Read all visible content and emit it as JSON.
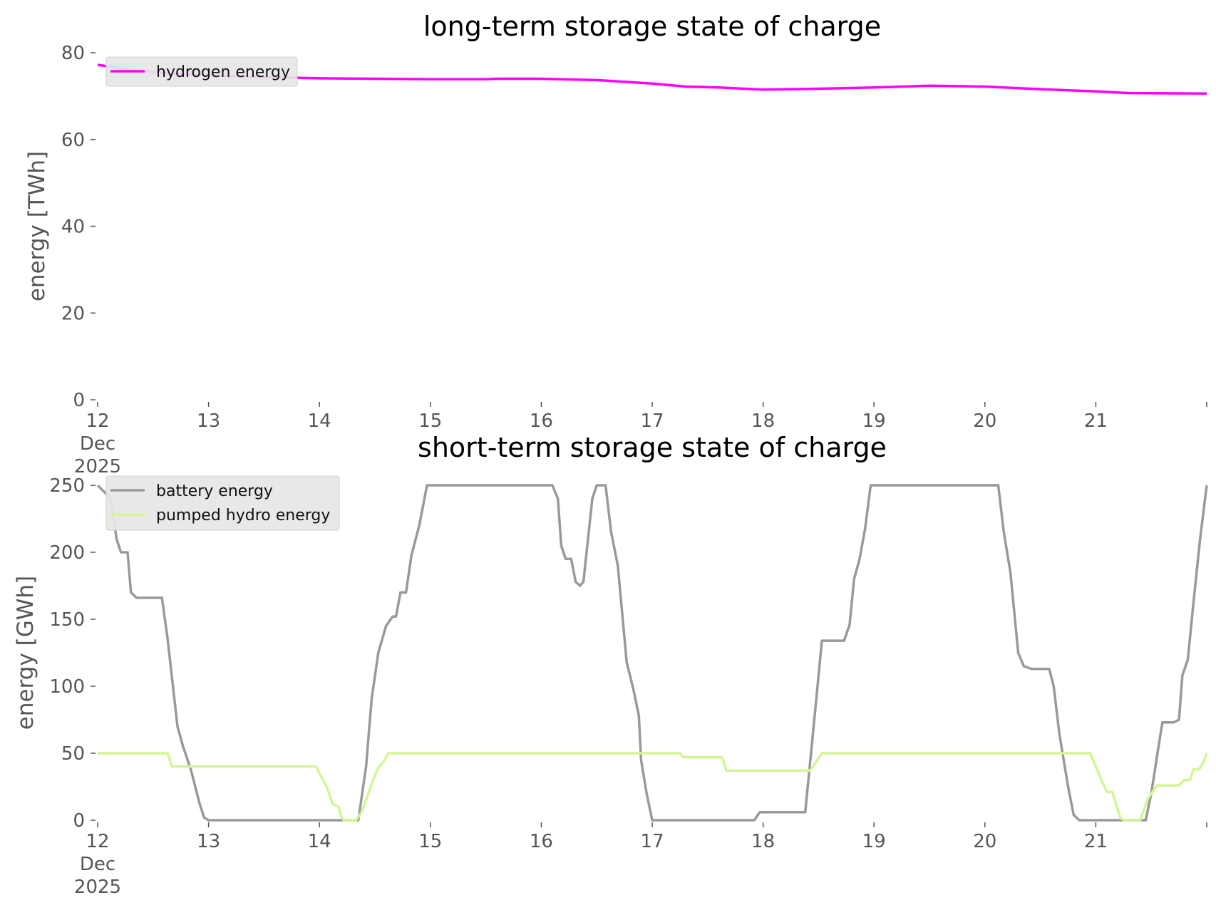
{
  "chart_data": [
    {
      "type": "line",
      "title": "long-term storage state of charge",
      "xlabel": "",
      "ylabel": "energy [TWh]",
      "ylim": [
        0,
        80
      ],
      "yticks": [
        "0",
        "20",
        "40",
        "60",
        "80"
      ],
      "xlim": [
        12,
        22
      ],
      "xticks": [
        {
          "x": 12,
          "label": [
            "12",
            "Dec",
            "2025"
          ]
        },
        {
          "x": 13,
          "label": [
            "13"
          ]
        },
        {
          "x": 14,
          "label": [
            "14"
          ]
        },
        {
          "x": 15,
          "label": [
            "15"
          ]
        },
        {
          "x": 16,
          "label": [
            "16"
          ]
        },
        {
          "x": 17,
          "label": [
            "17"
          ]
        },
        {
          "x": 18,
          "label": [
            "18"
          ]
        },
        {
          "x": 19,
          "label": [
            "19"
          ]
        },
        {
          "x": 20,
          "label": [
            "20"
          ]
        },
        {
          "x": 21,
          "label": [
            "21"
          ]
        }
      ],
      "grid": false,
      "legend_position": "top-left",
      "series": [
        {
          "name": "hydrogen energy",
          "color": "#ff00ff",
          "points": [
            [
              12.0,
              77.2
            ],
            [
              12.3,
              76.0
            ],
            [
              12.6,
              75.3
            ],
            [
              13.0,
              74.8
            ],
            [
              13.5,
              74.4
            ],
            [
              14.0,
              74.1
            ],
            [
              14.5,
              74.0
            ],
            [
              15.0,
              73.9
            ],
            [
              15.5,
              73.9
            ],
            [
              15.6,
              74.0
            ],
            [
              16.0,
              74.0
            ],
            [
              16.5,
              73.7
            ],
            [
              17.0,
              72.9
            ],
            [
              17.3,
              72.2
            ],
            [
              17.6,
              72.0
            ],
            [
              18.0,
              71.5
            ],
            [
              18.5,
              71.7
            ],
            [
              19.0,
              72.0
            ],
            [
              19.5,
              72.4
            ],
            [
              20.0,
              72.2
            ],
            [
              20.5,
              71.6
            ],
            [
              21.0,
              71.1
            ],
            [
              21.3,
              70.7
            ],
            [
              22.0,
              70.6
            ]
          ]
        }
      ]
    },
    {
      "type": "line",
      "title": "short-term storage state of charge",
      "xlabel": "",
      "ylabel": "energy [GWh]",
      "ylim": [
        0,
        250
      ],
      "yticks": [
        "0",
        "50",
        "100",
        "150",
        "200",
        "250"
      ],
      "xlim": [
        12,
        22
      ],
      "xticks": [
        {
          "x": 12,
          "label": [
            "12",
            "Dec",
            "2025"
          ]
        },
        {
          "x": 13,
          "label": [
            "13"
          ]
        },
        {
          "x": 14,
          "label": [
            "14"
          ]
        },
        {
          "x": 15,
          "label": [
            "15"
          ]
        },
        {
          "x": 16,
          "label": [
            "16"
          ]
        },
        {
          "x": 17,
          "label": [
            "17"
          ]
        },
        {
          "x": 18,
          "label": [
            "18"
          ]
        },
        {
          "x": 19,
          "label": [
            "19"
          ]
        },
        {
          "x": 20,
          "label": [
            "20"
          ]
        },
        {
          "x": 21,
          "label": [
            "21"
          ]
        }
      ],
      "grid": false,
      "legend_position": "top-left",
      "series": [
        {
          "name": "battery energy",
          "color": "#999999",
          "points": [
            [
              12.0,
              250
            ],
            [
              12.12,
              240
            ],
            [
              12.17,
              210
            ],
            [
              12.21,
              200
            ],
            [
              12.27,
              200
            ],
            [
              12.3,
              170
            ],
            [
              12.35,
              166
            ],
            [
              12.58,
              166
            ],
            [
              12.63,
              136
            ],
            [
              12.72,
              70
            ],
            [
              12.77,
              55
            ],
            [
              12.84,
              38
            ],
            [
              12.92,
              12
            ],
            [
              12.96,
              2
            ],
            [
              13.0,
              0
            ],
            [
              14.35,
              0
            ],
            [
              14.42,
              40
            ],
            [
              14.47,
              90
            ],
            [
              14.53,
              125
            ],
            [
              14.6,
              145
            ],
            [
              14.66,
              152
            ],
            [
              14.69,
              152
            ],
            [
              14.73,
              170
            ],
            [
              14.78,
              170
            ],
            [
              14.83,
              198
            ],
            [
              14.9,
              220
            ],
            [
              14.97,
              250
            ],
            [
              16.1,
              250
            ],
            [
              16.15,
              240
            ],
            [
              16.18,
              205
            ],
            [
              16.22,
              195
            ],
            [
              16.27,
              195
            ],
            [
              16.31,
              178
            ],
            [
              16.35,
              175
            ],
            [
              16.38,
              178
            ],
            [
              16.46,
              240
            ],
            [
              16.5,
              250
            ],
            [
              16.58,
              250
            ],
            [
              16.63,
              215
            ],
            [
              16.69,
              190
            ],
            [
              16.77,
              118
            ],
            [
              16.83,
              98
            ],
            [
              16.88,
              78
            ],
            [
              16.9,
              45
            ],
            [
              16.95,
              20
            ],
            [
              17.0,
              0
            ],
            [
              17.92,
              0
            ],
            [
              17.97,
              6
            ],
            [
              18.38,
              6
            ],
            [
              18.45,
              65
            ],
            [
              18.53,
              134
            ],
            [
              18.73,
              134
            ],
            [
              18.78,
              146
            ],
            [
              18.82,
              180
            ],
            [
              18.87,
              195
            ],
            [
              18.92,
              218
            ],
            [
              18.97,
              250
            ],
            [
              20.12,
              250
            ],
            [
              20.17,
              215
            ],
            [
              20.23,
              185
            ],
            [
              20.3,
              125
            ],
            [
              20.35,
              115
            ],
            [
              20.42,
              113
            ],
            [
              20.58,
              113
            ],
            [
              20.62,
              100
            ],
            [
              20.67,
              65
            ],
            [
              20.75,
              25
            ],
            [
              20.8,
              4
            ],
            [
              20.85,
              0
            ],
            [
              21.45,
              0
            ],
            [
              21.5,
              20
            ],
            [
              21.56,
              52
            ],
            [
              21.6,
              73
            ],
            [
              21.7,
              73
            ],
            [
              21.75,
              75
            ],
            [
              21.78,
              108
            ],
            [
              21.83,
              120
            ],
            [
              21.88,
              162
            ],
            [
              21.94,
              210
            ],
            [
              22.0,
              250
            ]
          ]
        },
        {
          "name": "pumped hydro energy",
          "color": "#d4f594",
          "points": [
            [
              12.0,
              50
            ],
            [
              12.63,
              50
            ],
            [
              12.67,
              40
            ],
            [
              13.97,
              40
            ],
            [
              14.07,
              24
            ],
            [
              14.12,
              12
            ],
            [
              14.17,
              10
            ],
            [
              14.2,
              2
            ],
            [
              14.22,
              0
            ],
            [
              14.33,
              0
            ],
            [
              14.38,
              6
            ],
            [
              14.45,
              22
            ],
            [
              14.52,
              38
            ],
            [
              14.58,
              44
            ],
            [
              14.62,
              50
            ],
            [
              17.25,
              50
            ],
            [
              17.28,
              47
            ],
            [
              17.63,
              47
            ],
            [
              17.67,
              37
            ],
            [
              18.42,
              37
            ],
            [
              18.45,
              40
            ],
            [
              18.53,
              50
            ],
            [
              20.95,
              50
            ],
            [
              21.05,
              30
            ],
            [
              21.1,
              21
            ],
            [
              21.15,
              21
            ],
            [
              21.22,
              2
            ],
            [
              21.25,
              0
            ],
            [
              21.4,
              0
            ],
            [
              21.47,
              16
            ],
            [
              21.55,
              26
            ],
            [
              21.75,
              26
            ],
            [
              21.8,
              30
            ],
            [
              21.85,
              30
            ],
            [
              21.88,
              38
            ],
            [
              21.93,
              38
            ],
            [
              21.97,
              43
            ],
            [
              22.0,
              50
            ]
          ]
        }
      ]
    }
  ]
}
